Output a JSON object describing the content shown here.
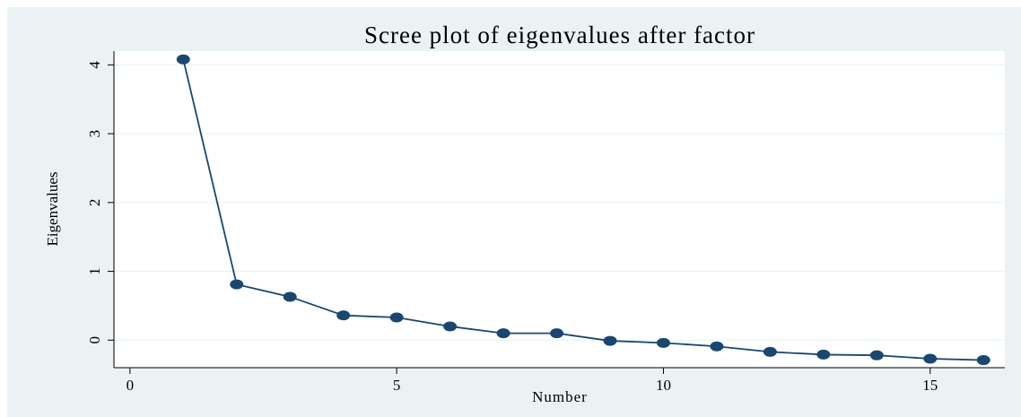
{
  "chart_data": {
    "type": "line",
    "title": "Scree plot of eigenvalues after factor",
    "x_label": "Number",
    "y_label": "Eigenvalues",
    "x": [
      1,
      2,
      3,
      4,
      5,
      6,
      7,
      8,
      9,
      10,
      11,
      12,
      13,
      14,
      15,
      16
    ],
    "series": [
      {
        "name": "Eigenvalues",
        "color": "#1a476f",
        "values": [
          4.08,
          0.81,
          0.63,
          0.36,
          0.33,
          0.2,
          0.1,
          0.1,
          -0.01,
          -0.04,
          -0.09,
          -0.17,
          -0.21,
          -0.22,
          -0.27,
          -0.29
        ]
      }
    ],
    "xlim": [
      -0.3,
      16.4
    ],
    "xticks": [
      0,
      5,
      10,
      15
    ],
    "ylim": [
      -0.4,
      4.2
    ],
    "yticks": [
      0,
      1,
      2,
      3,
      4
    ],
    "grid": true
  }
}
